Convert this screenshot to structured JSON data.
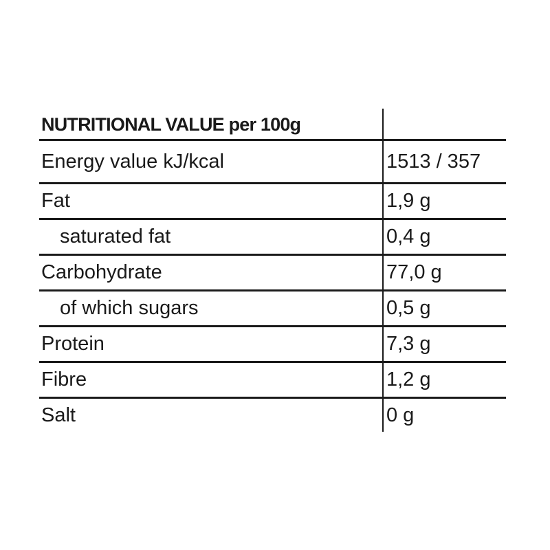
{
  "table": {
    "title": "NUTRITIONAL VALUE per 100g",
    "rows": [
      {
        "label": "Energy value kJ/kcal",
        "value": "1513 / 357",
        "indent": false
      },
      {
        "label": "Fat",
        "value": "1,9 g",
        "indent": false
      },
      {
        "label": "saturated fat",
        "value": "0,4 g",
        "indent": true
      },
      {
        "label": "Carbohydrate",
        "value": "77,0 g",
        "indent": false
      },
      {
        "label": "of which sugars",
        "value": "0,5 g",
        "indent": true
      },
      {
        "label": "Protein",
        "value": "7,3 g",
        "indent": false
      },
      {
        "label": "Fibre",
        "value": "1,2 g",
        "indent": false
      },
      {
        "label": "Salt",
        "value": "0 g",
        "indent": false
      }
    ],
    "colors": {
      "text": "#1a1a1a",
      "line": "#1a1a1a",
      "background": "#ffffff"
    }
  }
}
